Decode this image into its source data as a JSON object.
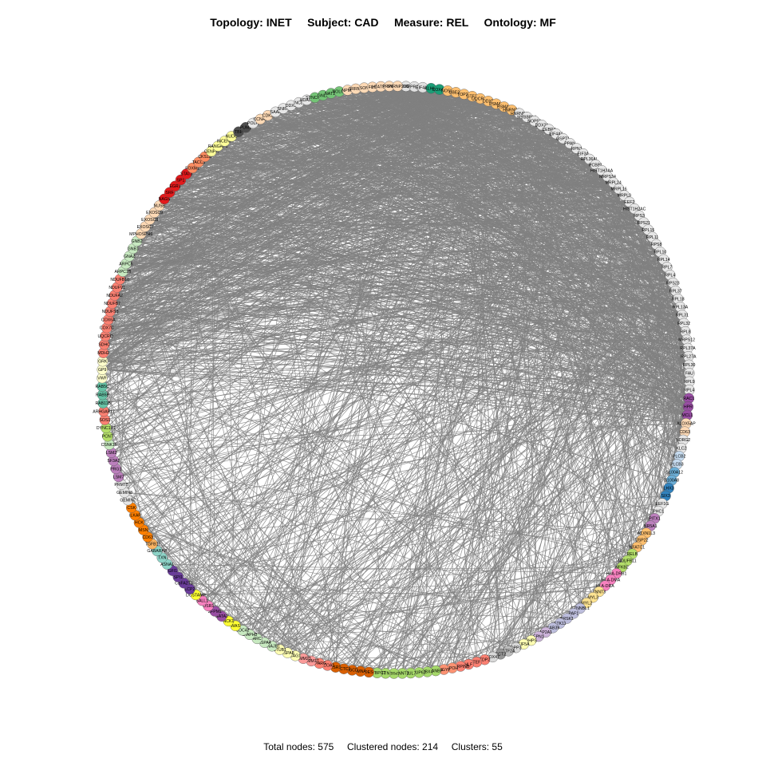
{
  "title": {
    "topology": "Topology: INET",
    "subject": "Subject: CAD",
    "measure": "Measure: REL",
    "ontology": "Ontology: MF"
  },
  "footer": {
    "total": "Total nodes: 575",
    "clustered": "Clustered nodes: 214",
    "clusters": "Clusters: 55"
  },
  "colors": {
    "edge": "#808080",
    "node_stroke": "#555555",
    "default_node": "#e6e6e6"
  },
  "nodes": [
    {
      "label": "MUC4",
      "color": "#e0e0e0"
    },
    {
      "label": "PPRC1",
      "color": "#e0e0e0"
    },
    {
      "label": "EIF4A2",
      "color": "#e0e0e0"
    },
    {
      "label": "KLHL7",
      "color": "#1b9e77"
    },
    {
      "label": "COX4I1",
      "color": "#1b9e77"
    },
    {
      "label": "NOSIP",
      "color": "#fdbf6f"
    },
    {
      "label": "UBE2G",
      "color": "#fdbf6f"
    },
    {
      "label": "TOP2B",
      "color": "#fdbf6f"
    },
    {
      "label": "GTF2I",
      "color": "#fdbf6f"
    },
    {
      "label": "UQCRC1",
      "color": "#fdbf6f"
    },
    {
      "label": "DDX5",
      "color": "#fdbf6f"
    },
    {
      "label": "PSMA1",
      "color": "#fdbf6f"
    },
    {
      "label": "PSMA6",
      "color": "#fdbf6f"
    },
    {
      "label": "HNRNPD",
      "color": "#fdbf6f"
    },
    {
      "label": "HNRNPC",
      "color": "#e6e6e6"
    },
    {
      "label": "MYBBP1A",
      "color": "#e6e6e6"
    },
    {
      "label": "NOP56",
      "color": "#e6e6e6"
    },
    {
      "label": "DDX21",
      "color": "#e6e6e6"
    },
    {
      "label": "CEBPZ",
      "color": "#e6e6e6"
    },
    {
      "label": "EIF4A3",
      "color": "#e6e6e6"
    },
    {
      "label": "GSPT1",
      "color": "#e6e6e6"
    },
    {
      "label": "PPAN",
      "color": "#e6e6e6"
    },
    {
      "label": "RPN1",
      "color": "#e6e6e6"
    },
    {
      "label": "EIF3A",
      "color": "#e6e6e6"
    },
    {
      "label": "RPL36AL",
      "color": "#e6e6e6"
    },
    {
      "label": "PCBP1",
      "color": "#e6e6e6"
    },
    {
      "label": "HIST1H2AA",
      "color": "#e6e6e6"
    },
    {
      "label": "MRPS34",
      "color": "#e6e6e6"
    },
    {
      "label": "MRPL24",
      "color": "#e6e6e6"
    },
    {
      "label": "MRPL16",
      "color": "#e6e6e6"
    },
    {
      "label": "MRPL9",
      "color": "#e6e6e6"
    },
    {
      "label": "EEF2",
      "color": "#e6e6e6"
    },
    {
      "label": "HIST1H2AC",
      "color": "#e6e6e6"
    },
    {
      "label": "RPS3",
      "color": "#e6e6e6"
    },
    {
      "label": "RPS21",
      "color": "#e6e6e6"
    },
    {
      "label": "RPL15",
      "color": "#e6e6e6"
    },
    {
      "label": "RPL11",
      "color": "#e6e6e6"
    },
    {
      "label": "RPS8",
      "color": "#e6e6e6"
    },
    {
      "label": "RPL10",
      "color": "#e6e6e6"
    },
    {
      "label": "RPL14",
      "color": "#e6e6e6"
    },
    {
      "label": "RPL7",
      "color": "#e6e6e6"
    },
    {
      "label": "RPL4",
      "color": "#e6e6e6"
    },
    {
      "label": "RPS23",
      "color": "#e6e6e6"
    },
    {
      "label": "RPL37",
      "color": "#e6e6e6"
    },
    {
      "label": "RPL18",
      "color": "#e6e6e6"
    },
    {
      "label": "RPL13A",
      "color": "#e6e6e6"
    },
    {
      "label": "RPL31",
      "color": "#e6e6e6"
    },
    {
      "label": "RPL32",
      "color": "#e6e6e6"
    },
    {
      "label": "RPL8",
      "color": "#e6e6e6"
    },
    {
      "label": "MRPS12",
      "color": "#e6e6e6"
    },
    {
      "label": "RPL37A",
      "color": "#e6e6e6"
    },
    {
      "label": "RPL27A",
      "color": "#e6e6e6"
    },
    {
      "label": "RPL30",
      "color": "#e6e6e6"
    },
    {
      "label": "FAU",
      "color": "#e6e6e6"
    },
    {
      "label": "RPL9",
      "color": "#e6e6e6"
    },
    {
      "label": "RPL4",
      "color": "#e6e6e6"
    },
    {
      "label": "RAC1",
      "color": "#984ea3"
    },
    {
      "label": "HPR",
      "color": "#984ea3"
    },
    {
      "label": "MCL1",
      "color": "#984ea3"
    },
    {
      "label": "ALOX5AP",
      "color": "#fdd9b5"
    },
    {
      "label": "CD63",
      "color": "#fdd9b5"
    },
    {
      "label": "NDRG2",
      "color": "#e6e6e6"
    },
    {
      "label": "KLC2",
      "color": "#e6e6e6"
    },
    {
      "label": "PLCB2",
      "color": "#c6dbef"
    },
    {
      "label": "PLCB3",
      "color": "#c6dbef"
    },
    {
      "label": "S100A12",
      "color": "#6baed6"
    },
    {
      "label": "S100A8",
      "color": "#6baed6"
    },
    {
      "label": "LHX3",
      "color": "#3182bd"
    },
    {
      "label": "SIX3",
      "color": "#3182bd"
    },
    {
      "label": "EEF1G",
      "color": "#e6e6e6"
    },
    {
      "label": "PHC1",
      "color": "#e6e6e6"
    },
    {
      "label": "PITX1",
      "color": "#bc80bd"
    },
    {
      "label": "NR5A1",
      "color": "#bc80bd"
    },
    {
      "label": "ATXN1L3",
      "color": "#fdbf6f"
    },
    {
      "label": "USP22",
      "color": "#fdbf6f"
    },
    {
      "label": "NFATC1",
      "color": "#fdbf6f"
    },
    {
      "label": "RELB",
      "color": "#b3de69"
    },
    {
      "label": "NDUFB11",
      "color": "#b3de69"
    },
    {
      "label": "NFKB2",
      "color": "#b3de69"
    },
    {
      "label": "HLA-DRB1",
      "color": "#f781bf"
    },
    {
      "label": "HLA-DMA",
      "color": "#f781bf"
    },
    {
      "label": "HLA-DRA",
      "color": "#f781bf"
    },
    {
      "label": "TNNT3",
      "color": "#fee391"
    },
    {
      "label": "MYL3",
      "color": "#fee391"
    },
    {
      "label": "MYL2",
      "color": "#fee391"
    },
    {
      "label": "CTNNBL1",
      "color": "#bcbddc"
    },
    {
      "label": "PAF1",
      "color": "#bcbddc"
    },
    {
      "label": "BRSK1",
      "color": "#bcbddc"
    },
    {
      "label": "STK11",
      "color": "#bcbddc"
    },
    {
      "label": "CAB39",
      "color": "#bcbddc"
    },
    {
      "label": "AP2A1",
      "color": "#ccb3d9"
    },
    {
      "label": "EPN1",
      "color": "#ccb3d9"
    },
    {
      "label": "DHPS",
      "color": "#ffffb3"
    },
    {
      "label": "EIF5A",
      "color": "#ffffb3"
    },
    {
      "label": "DPP3",
      "color": "#d9d9d9"
    },
    {
      "label": "GTF2A",
      "color": "#bdbdbd"
    },
    {
      "label": "CCT2",
      "color": "#969696"
    },
    {
      "label": "DDX47",
      "color": "#d9d9d9"
    },
    {
      "label": "TDP2",
      "color": "#fb8072"
    },
    {
      "label": "TEF",
      "color": "#fb8072"
    },
    {
      "label": "HLF",
      "color": "#fb8072"
    },
    {
      "label": "SERPINB",
      "color": "#fb8072"
    },
    {
      "label": "APOH",
      "color": "#fc9272"
    },
    {
      "label": "GIGYF",
      "color": "#fc9272"
    },
    {
      "label": "RANBP",
      "color": "#a6d96a"
    },
    {
      "label": "CBX4",
      "color": "#a6d96a"
    },
    {
      "label": "NUP62",
      "color": "#a6d96a"
    },
    {
      "label": "CUL7",
      "color": "#a6d96a"
    },
    {
      "label": "TNNT2",
      "color": "#a6d96a"
    },
    {
      "label": "MYH7",
      "color": "#a6d96a"
    },
    {
      "label": "TTN",
      "color": "#a6d96a"
    },
    {
      "label": "MYBPC3",
      "color": "#a6d96a"
    },
    {
      "label": "DES",
      "color": "#d95f02"
    },
    {
      "label": "LMNA",
      "color": "#d95f02"
    },
    {
      "label": "SGCD",
      "color": "#d95f02"
    },
    {
      "label": "ACTC1",
      "color": "#d95f02"
    },
    {
      "label": "ESR1",
      "color": "#d95f02"
    },
    {
      "label": "NCOA1",
      "color": "#fb8072"
    },
    {
      "label": "PPARG",
      "color": "#fb8072"
    },
    {
      "label": "TIMM17",
      "color": "#fb9a99"
    },
    {
      "label": "TIMM23",
      "color": "#fb9a99"
    },
    {
      "label": "BAG1",
      "color": "#ffffb3"
    },
    {
      "label": "HSPA8",
      "color": "#ffffb3"
    },
    {
      "label": "STUB1",
      "color": "#ffffb3"
    },
    {
      "label": "DNAJB1",
      "color": "#c7e9c0"
    },
    {
      "label": "HSPA4",
      "color": "#c7e9c0"
    },
    {
      "label": "ARC",
      "color": "#c7e9c0"
    },
    {
      "label": "DIAPH3",
      "color": "#c7e9c0"
    },
    {
      "label": "CDC42",
      "color": "#c7e9c0"
    },
    {
      "label": "WAS",
      "color": "#ffff33"
    },
    {
      "label": "NCK1",
      "color": "#ffff33"
    },
    {
      "label": "GATA2",
      "color": "#984ea3"
    },
    {
      "label": "ZFPM1",
      "color": "#984ea3"
    },
    {
      "label": "OSR1",
      "color": "#f781bf"
    },
    {
      "label": "SALL1",
      "color": "#f781bf"
    },
    {
      "label": "DCSTAMP",
      "color": "#ffff33"
    },
    {
      "label": "LCP2",
      "color": "#6a3d9a"
    },
    {
      "label": "CBFA2T3",
      "color": "#6a3d9a"
    },
    {
      "label": "SPI1",
      "color": "#6a3d9a"
    },
    {
      "label": "GFI1",
      "color": "#6a3d9a"
    },
    {
      "label": "ASNA1",
      "color": "#8dd3c7"
    },
    {
      "label": "TXN",
      "color": "#8dd3c7"
    },
    {
      "label": "GABARAP",
      "color": "#8dd3c7"
    },
    {
      "label": "TGFB1I",
      "color": "#fdb462"
    },
    {
      "label": "CD63",
      "color": "#ff7f00"
    },
    {
      "label": "MSN",
      "color": "#ff7f00"
    },
    {
      "label": "HCK",
      "color": "#ff7f00"
    },
    {
      "label": "ILKAP",
      "color": "#ff7f00"
    },
    {
      "label": "CSK",
      "color": "#ff7f00"
    },
    {
      "label": "GEMIN7",
      "color": "#e6e6e6"
    },
    {
      "label": "GEMIN8",
      "color": "#e6e6e6"
    },
    {
      "label": "PRMT5",
      "color": "#e6e6e6"
    },
    {
      "label": "LSM7",
      "color": "#bc80bd"
    },
    {
      "label": "PRG1",
      "color": "#bc80bd"
    },
    {
      "label": "SF3A2",
      "color": "#bc80bd"
    },
    {
      "label": "LSM2",
      "color": "#bc80bd"
    },
    {
      "label": "CSNK1E",
      "color": "#c7e9c0"
    },
    {
      "label": "PCNT",
      "color": "#b3de69"
    },
    {
      "label": "DYNC1H1",
      "color": "#b3de69"
    },
    {
      "label": "SOS1",
      "color": "#fb8072"
    },
    {
      "label": "ARHGAP17",
      "color": "#fb8072"
    },
    {
      "label": "RAB11B",
      "color": "#66c2a5"
    },
    {
      "label": "RAB5B",
      "color": "#66c2a5"
    },
    {
      "label": "RAB5C",
      "color": "#66c2a5"
    },
    {
      "label": "VWF",
      "color": "#ffffcc"
    },
    {
      "label": "GP9",
      "color": "#ffffcc"
    },
    {
      "label": "GRK",
      "color": "#ffffcc"
    },
    {
      "label": "MDH2",
      "color": "#fb8072"
    },
    {
      "label": "SDHC",
      "color": "#fb8072"
    },
    {
      "label": "UQCRQ",
      "color": "#fb8072"
    },
    {
      "label": "COX7C",
      "color": "#fb8072"
    },
    {
      "label": "COX6A",
      "color": "#fb8072"
    },
    {
      "label": "NDUFS3",
      "color": "#fb8072"
    },
    {
      "label": "NDUFB7",
      "color": "#fb8072"
    },
    {
      "label": "NDUFA2",
      "color": "#fb8072"
    },
    {
      "label": "NDUFV1",
      "color": "#fb8072"
    },
    {
      "label": "NDUFB10",
      "color": "#fb8072"
    },
    {
      "label": "ARPC1B",
      "color": "#c7e9c0"
    },
    {
      "label": "ARPC5",
      "color": "#c7e9c0"
    },
    {
      "label": "GNAZ",
      "color": "#c7e9c0"
    },
    {
      "label": "GNB1",
      "color": "#c7e9c0"
    },
    {
      "label": "GNB2",
      "color": "#c7e9c0"
    },
    {
      "label": "MPHOSPH6",
      "color": "#fdd9b5"
    },
    {
      "label": "EXOSC7",
      "color": "#fdd9b5"
    },
    {
      "label": "EXOSC8",
      "color": "#fdd9b5"
    },
    {
      "label": "EXOSC9",
      "color": "#fdd9b5"
    },
    {
      "label": "NUSB",
      "color": "#fdd9b5"
    },
    {
      "label": "NAGS",
      "color": "#e31a1c"
    },
    {
      "label": "SRF",
      "color": "#e31a1c"
    },
    {
      "label": "EGR1",
      "color": "#e31a1c"
    },
    {
      "label": "SP1",
      "color": "#e31a1c"
    },
    {
      "label": "STAT3",
      "color": "#e31a1c"
    },
    {
      "label": "FOXM1",
      "color": "#fc8d62"
    },
    {
      "label": "TACC3",
      "color": "#fc8d62"
    },
    {
      "label": "CKS1B",
      "color": "#fc8d62"
    },
    {
      "label": "CENPH",
      "color": "#ffff99"
    },
    {
      "label": "RANGAP1",
      "color": "#ffff99"
    },
    {
      "label": "INCENP",
      "color": "#ffff99"
    },
    {
      "label": "NUDC",
      "color": "#ffff99"
    },
    {
      "label": "TBP",
      "color": "#4d4d4d"
    },
    {
      "label": "PUM1",
      "color": "#4d4d4d"
    },
    {
      "label": "POLH",
      "color": "#e6e6e6"
    },
    {
      "label": "CCNA2",
      "color": "#fdd9b5"
    },
    {
      "label": "CDK2",
      "color": "#fdd9b5"
    },
    {
      "label": "SAAL",
      "color": "#e6e6e6"
    },
    {
      "label": "SNRP",
      "color": "#e6e6e6"
    },
    {
      "label": "DDX3",
      "color": "#e6e6e6"
    },
    {
      "label": "NCL",
      "color": "#e6e6e6"
    },
    {
      "label": "HDAC2",
      "color": "#e6e6e6"
    },
    {
      "label": "SYNCRIP",
      "color": "#74c476"
    },
    {
      "label": "GNL3",
      "color": "#74c476"
    },
    {
      "label": "NAT10",
      "color": "#74c476"
    },
    {
      "label": "NOLC1",
      "color": "#74c476"
    },
    {
      "label": "NPM1",
      "color": "#fdd9b5"
    },
    {
      "label": "SRRM2",
      "color": "#fdd9b5"
    },
    {
      "label": "SON",
      "color": "#fdd9b5"
    },
    {
      "label": "FUS",
      "color": "#fdd9b5"
    },
    {
      "label": "HTATSF1",
      "color": "#fdd9b5"
    },
    {
      "label": "PRPF8",
      "color": "#fdd9b5"
    },
    {
      "label": "SNRNP200",
      "color": "#fdd9b5"
    }
  ]
}
